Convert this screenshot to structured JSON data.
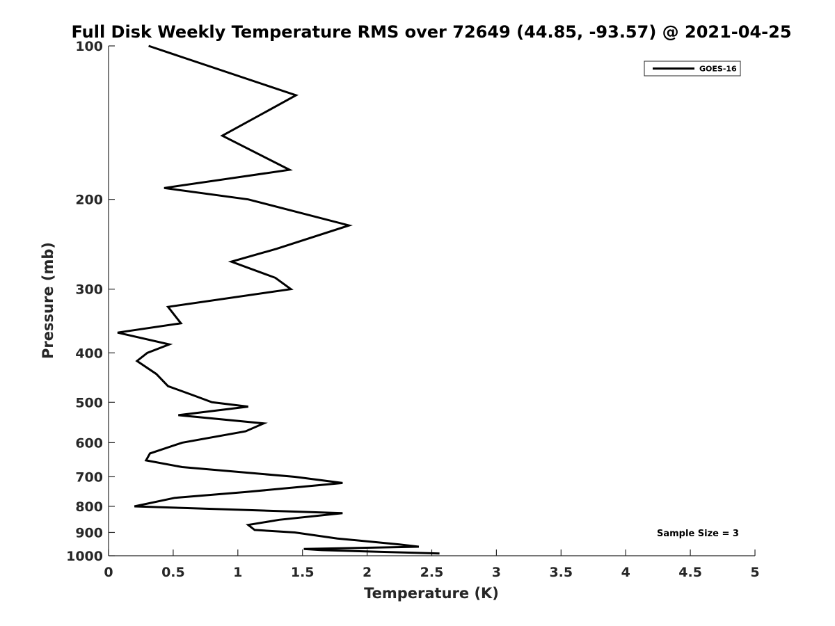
{
  "chart_data": {
    "type": "line",
    "title": "Full Disk Weekly Temperature RMS over 72649 (44.85, -93.57) @ 2021-04-25",
    "xlabel": "Temperature (K)",
    "ylabel": "Pressure (mb)",
    "xlim": [
      0,
      5
    ],
    "ylim": [
      100,
      1000
    ],
    "y_scale": "log",
    "y_inverted": true,
    "x_ticks": [
      "0",
      "0.5",
      "1",
      "1.5",
      "2",
      "2.5",
      "3",
      "3.5",
      "4",
      "4.5",
      "5"
    ],
    "y_ticks": [
      "100",
      "200",
      "300",
      "400",
      "500",
      "600",
      "700",
      "800",
      "900",
      "1000"
    ],
    "grid": false,
    "legend_position": "top-right",
    "annotation": "Sample Size = 3",
    "series": [
      {
        "name": "GOES-16",
        "color": "#000000",
        "x": [
          0.31,
          1.45,
          0.88,
          1.4,
          0.43,
          1.08,
          1.86,
          1.3,
          0.95,
          1.29,
          1.41,
          0.46,
          0.56,
          0.07,
          0.47,
          0.3,
          0.22,
          0.37,
          0.46,
          0.66,
          0.8,
          1.08,
          0.54,
          1.2,
          1.06,
          0.57,
          0.32,
          0.29,
          0.57,
          1.44,
          1.81,
          1.06,
          0.51,
          0.2,
          1.81,
          1.32,
          1.08,
          1.13,
          1.44,
          1.77,
          2.25,
          2.4,
          1.51,
          1.65,
          2.56
        ],
        "y": [
          100,
          125,
          150,
          175,
          190,
          200,
          225,
          250,
          265,
          285,
          300,
          325,
          350,
          365,
          385,
          400,
          415,
          440,
          465,
          485,
          500,
          510,
          530,
          550,
          570,
          600,
          630,
          650,
          670,
          700,
          720,
          750,
          770,
          800,
          825,
          850,
          870,
          890,
          900,
          925,
          950,
          960,
          970,
          975,
          990
        ]
      }
    ]
  }
}
